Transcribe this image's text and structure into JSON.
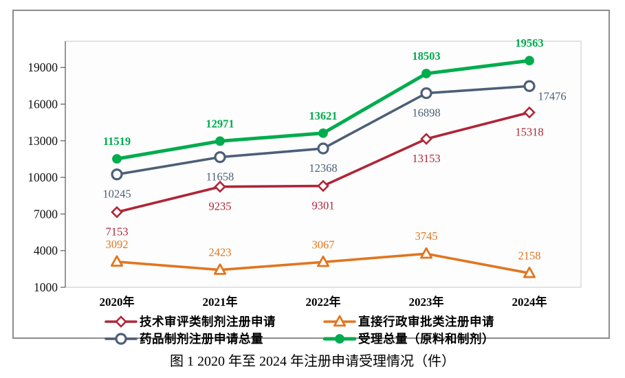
{
  "figure": {
    "caption": "图 1  2020 年至 2024 年注册申请受理情况（件）"
  },
  "chart_data": {
    "type": "line",
    "title": "图 1  2020 年至 2024 年注册申请受理情况（件）",
    "xlabel": "",
    "ylabel": "",
    "categories": [
      "2020年",
      "2021年",
      "2022年",
      "2023年",
      "2024年"
    ],
    "series": [
      {
        "name": "技术审评类制剂注册申请",
        "values": [
          7153,
          9235,
          9301,
          13153,
          15318
        ],
        "color": "#b02437",
        "marker": "diamond-open",
        "line_width": 3.6,
        "label_position": "below",
        "label_bold": false
      },
      {
        "name": "直接行政审批类注册申请",
        "values": [
          3092,
          2423,
          3067,
          3745,
          2158
        ],
        "color": "#e2751f",
        "marker": "triangle-open",
        "line_width": 3.6,
        "label_position": "above",
        "label_bold": false
      },
      {
        "name": "药品制剂注册申请总量",
        "values": [
          10245,
          11658,
          12368,
          16898,
          17476
        ],
        "color": "#4c5f77",
        "marker": "circle-open",
        "line_width": 3.6,
        "label_position": "below",
        "label_bold": false
      },
      {
        "name": "受理总量（原料和制剂）",
        "values": [
          11519,
          12971,
          13621,
          18503,
          19563
        ],
        "color": "#00ac4e",
        "marker": "circle-filled",
        "line_width": 5,
        "label_position": "above",
        "label_bold": true
      }
    ],
    "y_ticks": [
      1000,
      4000,
      7000,
      10000,
      13000,
      16000,
      19000
    ],
    "ylim": [
      1000,
      21150
    ],
    "grid": false,
    "legend_position": "bottom",
    "legend_columns": 2,
    "legend_order": [
      0,
      1,
      2,
      3
    ]
  }
}
